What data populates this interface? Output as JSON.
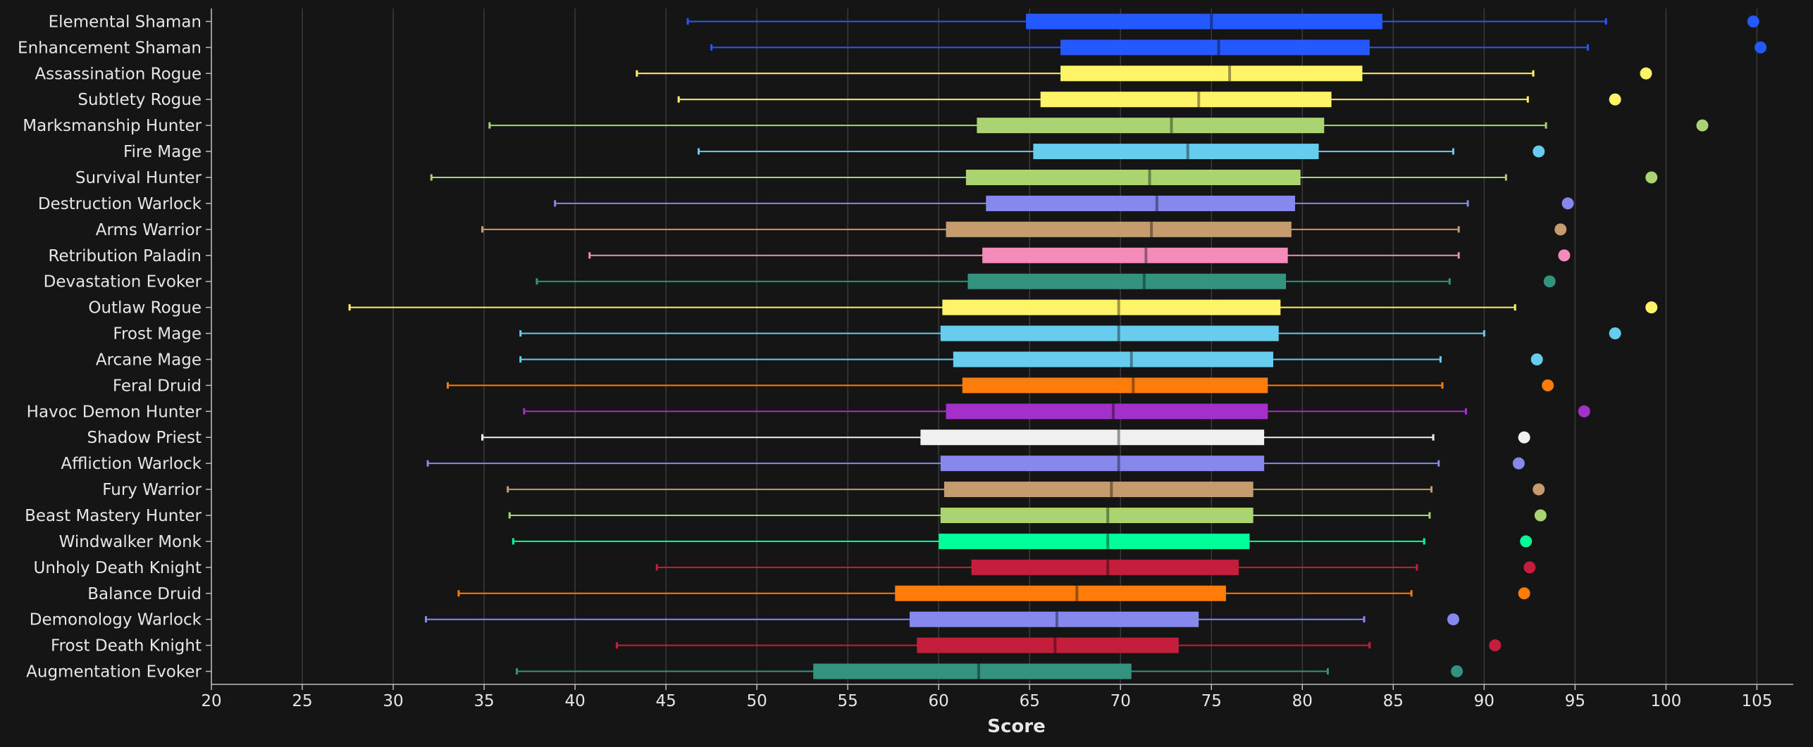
{
  "chart_data": {
    "type": "boxplot",
    "title": "",
    "xlabel": "Score",
    "ylabel": "",
    "xlim": [
      20,
      107
    ],
    "xticks": [
      20,
      25,
      30,
      35,
      40,
      45,
      50,
      55,
      60,
      65,
      70,
      75,
      80,
      85,
      90,
      95,
      100,
      105
    ],
    "grid": true,
    "series": [
      {
        "name": "Elemental Shaman",
        "color": "#2459ff",
        "min": 46.2,
        "q1": 64.8,
        "median": 75.0,
        "q3": 84.4,
        "max": 96.7,
        "top": 104.8
      },
      {
        "name": "Enhancement Shaman",
        "color": "#2459ff",
        "min": 47.5,
        "q1": 66.7,
        "median": 75.4,
        "q3": 83.7,
        "max": 95.7,
        "top": 105.2
      },
      {
        "name": "Assassination Rogue",
        "color": "#fff468",
        "min": 43.4,
        "q1": 66.7,
        "median": 76.0,
        "q3": 83.3,
        "max": 92.7,
        "top": 98.9
      },
      {
        "name": "Subtlety Rogue",
        "color": "#fff468",
        "min": 45.7,
        "q1": 65.6,
        "median": 74.3,
        "q3": 81.6,
        "max": 92.4,
        "top": 97.2
      },
      {
        "name": "Marksmanship Hunter",
        "color": "#aad372",
        "min": 35.3,
        "q1": 62.1,
        "median": 72.8,
        "q3": 81.2,
        "max": 93.4,
        "top": 102.0
      },
      {
        "name": "Fire Mage",
        "color": "#68ccef",
        "min": 46.8,
        "q1": 65.2,
        "median": 73.7,
        "q3": 80.9,
        "max": 88.3,
        "top": 93.0
      },
      {
        "name": "Survival Hunter",
        "color": "#aad372",
        "min": 32.1,
        "q1": 61.5,
        "median": 71.6,
        "q3": 79.9,
        "max": 91.2,
        "top": 99.2
      },
      {
        "name": "Destruction Warlock",
        "color": "#8788ee",
        "min": 38.9,
        "q1": 62.6,
        "median": 72.0,
        "q3": 79.6,
        "max": 89.1,
        "top": 94.6
      },
      {
        "name": "Arms Warrior",
        "color": "#c69b6d",
        "min": 34.9,
        "q1": 60.4,
        "median": 71.7,
        "q3": 79.4,
        "max": 88.6,
        "top": 94.2
      },
      {
        "name": "Retribution Paladin",
        "color": "#f48cba",
        "min": 40.8,
        "q1": 62.4,
        "median": 71.4,
        "q3": 79.2,
        "max": 88.6,
        "top": 94.4
      },
      {
        "name": "Devastation Evoker",
        "color": "#33937f",
        "min": 37.9,
        "q1": 61.6,
        "median": 71.3,
        "q3": 79.1,
        "max": 88.1,
        "top": 93.6
      },
      {
        "name": "Outlaw Rogue",
        "color": "#fff468",
        "min": 27.6,
        "q1": 60.2,
        "median": 69.9,
        "q3": 78.8,
        "max": 91.7,
        "top": 99.2
      },
      {
        "name": "Frost Mage",
        "color": "#68ccef",
        "min": 37.0,
        "q1": 60.1,
        "median": 69.9,
        "q3": 78.7,
        "max": 90.0,
        "top": 97.2
      },
      {
        "name": "Arcane Mage",
        "color": "#68ccef",
        "min": 37.0,
        "q1": 60.8,
        "median": 70.6,
        "q3": 78.4,
        "max": 87.6,
        "top": 92.9
      },
      {
        "name": "Feral Druid",
        "color": "#ff7c0a",
        "min": 33.0,
        "q1": 61.3,
        "median": 70.7,
        "q3": 78.1,
        "max": 87.7,
        "top": 93.5
      },
      {
        "name": "Havoc Demon Hunter",
        "color": "#a330c9",
        "min": 37.2,
        "q1": 60.4,
        "median": 69.6,
        "q3": 78.1,
        "max": 89.0,
        "top": 95.5
      },
      {
        "name": "Shadow Priest",
        "color": "#f0f0f0",
        "min": 34.9,
        "q1": 59.0,
        "median": 69.9,
        "q3": 77.9,
        "max": 87.2,
        "top": 92.2
      },
      {
        "name": "Affliction Warlock",
        "color": "#8788ee",
        "min": 31.9,
        "q1": 60.1,
        "median": 69.9,
        "q3": 77.9,
        "max": 87.5,
        "top": 91.9
      },
      {
        "name": "Fury Warrior",
        "color": "#c69b6d",
        "min": 36.3,
        "q1": 60.3,
        "median": 69.5,
        "q3": 77.3,
        "max": 87.1,
        "top": 93.0
      },
      {
        "name": "Beast Mastery Hunter",
        "color": "#aad372",
        "min": 36.4,
        "q1": 60.1,
        "median": 69.3,
        "q3": 77.3,
        "max": 87.0,
        "top": 93.1
      },
      {
        "name": "Windwalker Monk",
        "color": "#00ff98",
        "min": 36.6,
        "q1": 60.0,
        "median": 69.3,
        "q3": 77.1,
        "max": 86.7,
        "top": 92.3
      },
      {
        "name": "Unholy Death Knight",
        "color": "#c41e3a",
        "min": 44.5,
        "q1": 61.8,
        "median": 69.3,
        "q3": 76.5,
        "max": 86.3,
        "top": 92.5
      },
      {
        "name": "Balance Druid",
        "color": "#ff7c0a",
        "min": 33.6,
        "q1": 57.6,
        "median": 67.6,
        "q3": 75.8,
        "max": 86.0,
        "top": 92.2
      },
      {
        "name": "Demonology Warlock",
        "color": "#8788ee",
        "min": 31.8,
        "q1": 58.4,
        "median": 66.5,
        "q3": 74.3,
        "max": 83.4,
        "top": 88.3
      },
      {
        "name": "Frost Death Knight",
        "color": "#c41e3a",
        "min": 42.3,
        "q1": 58.8,
        "median": 66.4,
        "q3": 73.2,
        "max": 83.7,
        "top": 90.6
      },
      {
        "name": "Augmentation Evoker",
        "color": "#33937f",
        "min": 36.8,
        "q1": 53.1,
        "median": 62.2,
        "q3": 70.6,
        "max": 81.4,
        "top": 88.5
      }
    ]
  }
}
